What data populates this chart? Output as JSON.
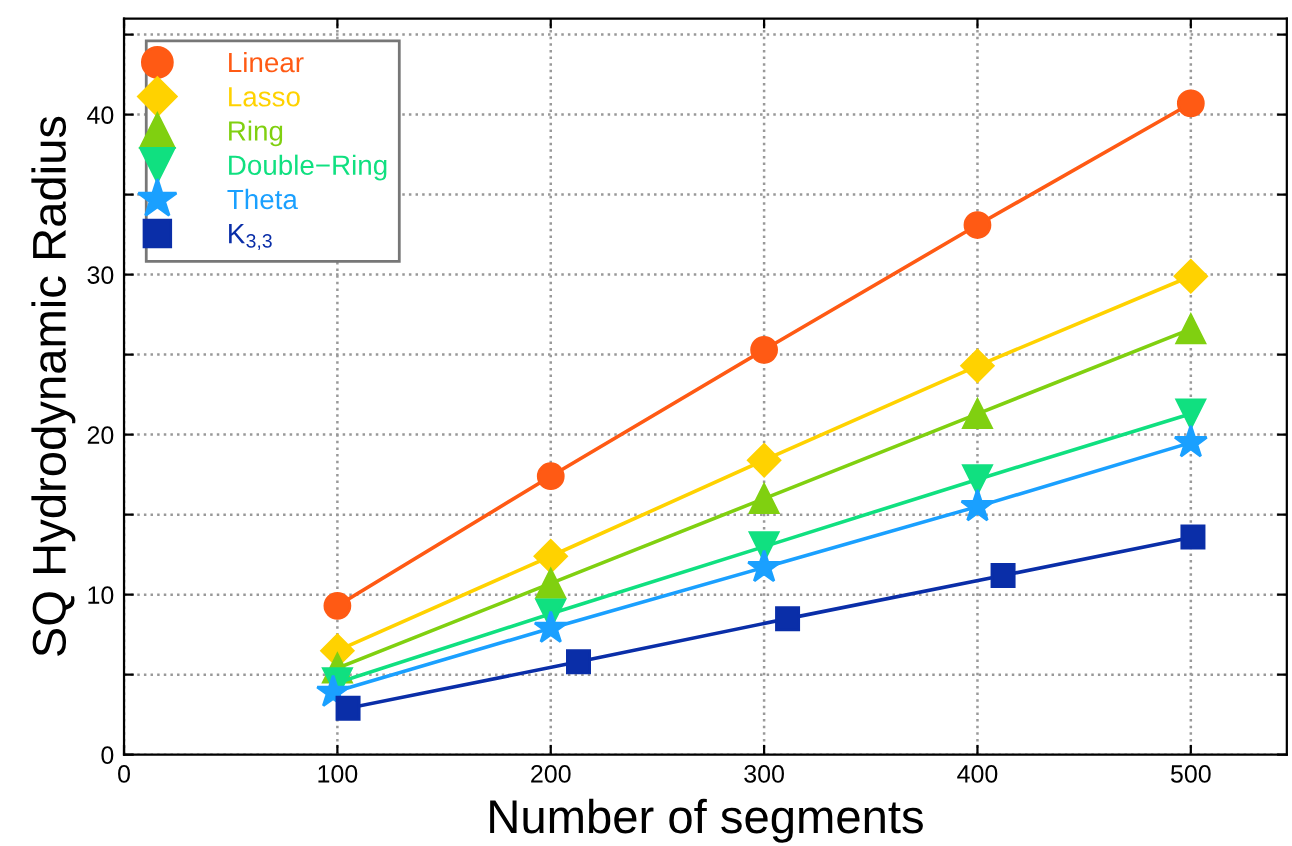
{
  "chart_data": {
    "type": "line",
    "xlabel": "Number of segments",
    "ylabel": "SQ Hydrodynamic Radius",
    "xlim": [
      0,
      545
    ],
    "ylim": [
      0,
      46
    ],
    "xticks": [
      0,
      100,
      200,
      300,
      400,
      500
    ],
    "yticks": [
      0,
      {
        "value": 5,
        "label": null
      },
      10,
      {
        "value": 15,
        "label": null
      },
      20,
      {
        "value": 25,
        "label": null
      },
      30,
      {
        "value": 35,
        "label": null
      },
      40,
      {
        "value": 45,
        "label": null
      }
    ],
    "grid": true,
    "legend": "top left",
    "series": [
      {
        "name": "Linear",
        "color": "#ff5a14",
        "marker": "circle",
        "x": [
          100,
          200,
          300,
          400,
          500
        ],
        "values": [
          9.3,
          17.4,
          25.3,
          33.1,
          40.7
        ]
      },
      {
        "name": "Lasso",
        "color": "#ffd200",
        "marker": "diamond",
        "x": [
          100,
          200,
          300,
          400,
          500
        ],
        "values": [
          6.5,
          12.4,
          18.4,
          24.3,
          29.9
        ]
      },
      {
        "name": "Ring",
        "color": "#80d010",
        "marker": "triangle",
        "x": [
          100,
          200,
          300,
          400,
          500
        ],
        "values": [
          5.4,
          10.7,
          16.0,
          21.3,
          26.6
        ]
      },
      {
        "name": "Double−Ring",
        "color": "#10e080",
        "marker": "triangle_down",
        "x": [
          100,
          200,
          300,
          400,
          500
        ],
        "values": [
          4.5,
          8.8,
          13.0,
          17.2,
          21.3
        ]
      },
      {
        "name": "Theta",
        "color": "#1aa0ff",
        "marker": "star",
        "x": [
          98,
          200,
          300,
          400,
          500
        ],
        "values": [
          3.9,
          7.9,
          11.7,
          15.5,
          19.5
        ]
      },
      {
        "name": "K$_{3,3}$",
        "color": "#0a2ea8",
        "marker": "square",
        "x": [
          105,
          213,
          311,
          412,
          501
        ],
        "values": [
          2.9,
          5.8,
          8.5,
          11.2,
          13.6
        ]
      }
    ]
  }
}
